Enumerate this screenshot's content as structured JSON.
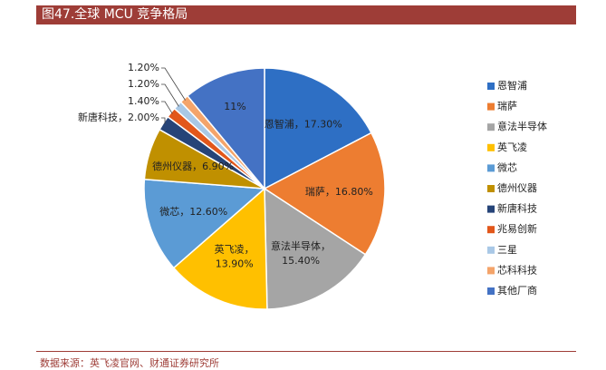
{
  "header": {
    "title": "图47.全球 MCU 竞争格局"
  },
  "footer": {
    "source": "数据来源：英飞凌官网、财通证券研究所"
  },
  "chart_data": {
    "type": "pie",
    "legend_position": "right",
    "slices": [
      {
        "name": "恩智浦",
        "value": 17.3,
        "label": "恩智浦，17.30%",
        "color": "#2e6fc4"
      },
      {
        "name": "瑞萨",
        "value": 16.8,
        "label": "瑞萨，16.80%",
        "color": "#ed7d31"
      },
      {
        "name": "意法半导体",
        "value": 15.4,
        "label": "意法半导体，15.40%",
        "color": "#a5a5a5"
      },
      {
        "name": "英飞凌",
        "value": 13.9,
        "label": "英飞凌，13.90%",
        "color": "#ffc000"
      },
      {
        "name": "微芯",
        "value": 12.6,
        "label": "微芯，12.60%",
        "color": "#5b9bd5"
      },
      {
        "name": "德州仪器",
        "value": 6.9,
        "label": "德州仪器，6.90%",
        "color": "#c09000"
      },
      {
        "name": "新唐科技",
        "value": 2.0,
        "label": "新唐科技，2.00%",
        "color": "#264478"
      },
      {
        "name": "兆易创新",
        "value": 1.4,
        "label": "1.40%",
        "color": "#e2571b"
      },
      {
        "name": "三星",
        "value": 1.2,
        "label": "1.20%",
        "color": "#a9c8e6"
      },
      {
        "name": "芯科科技",
        "value": 1.2,
        "label": "1.20%",
        "color": "#f4a46a"
      },
      {
        "name": "其他厂商",
        "value": 11.0,
        "label": "11%",
        "color": "#4472c4"
      }
    ]
  }
}
